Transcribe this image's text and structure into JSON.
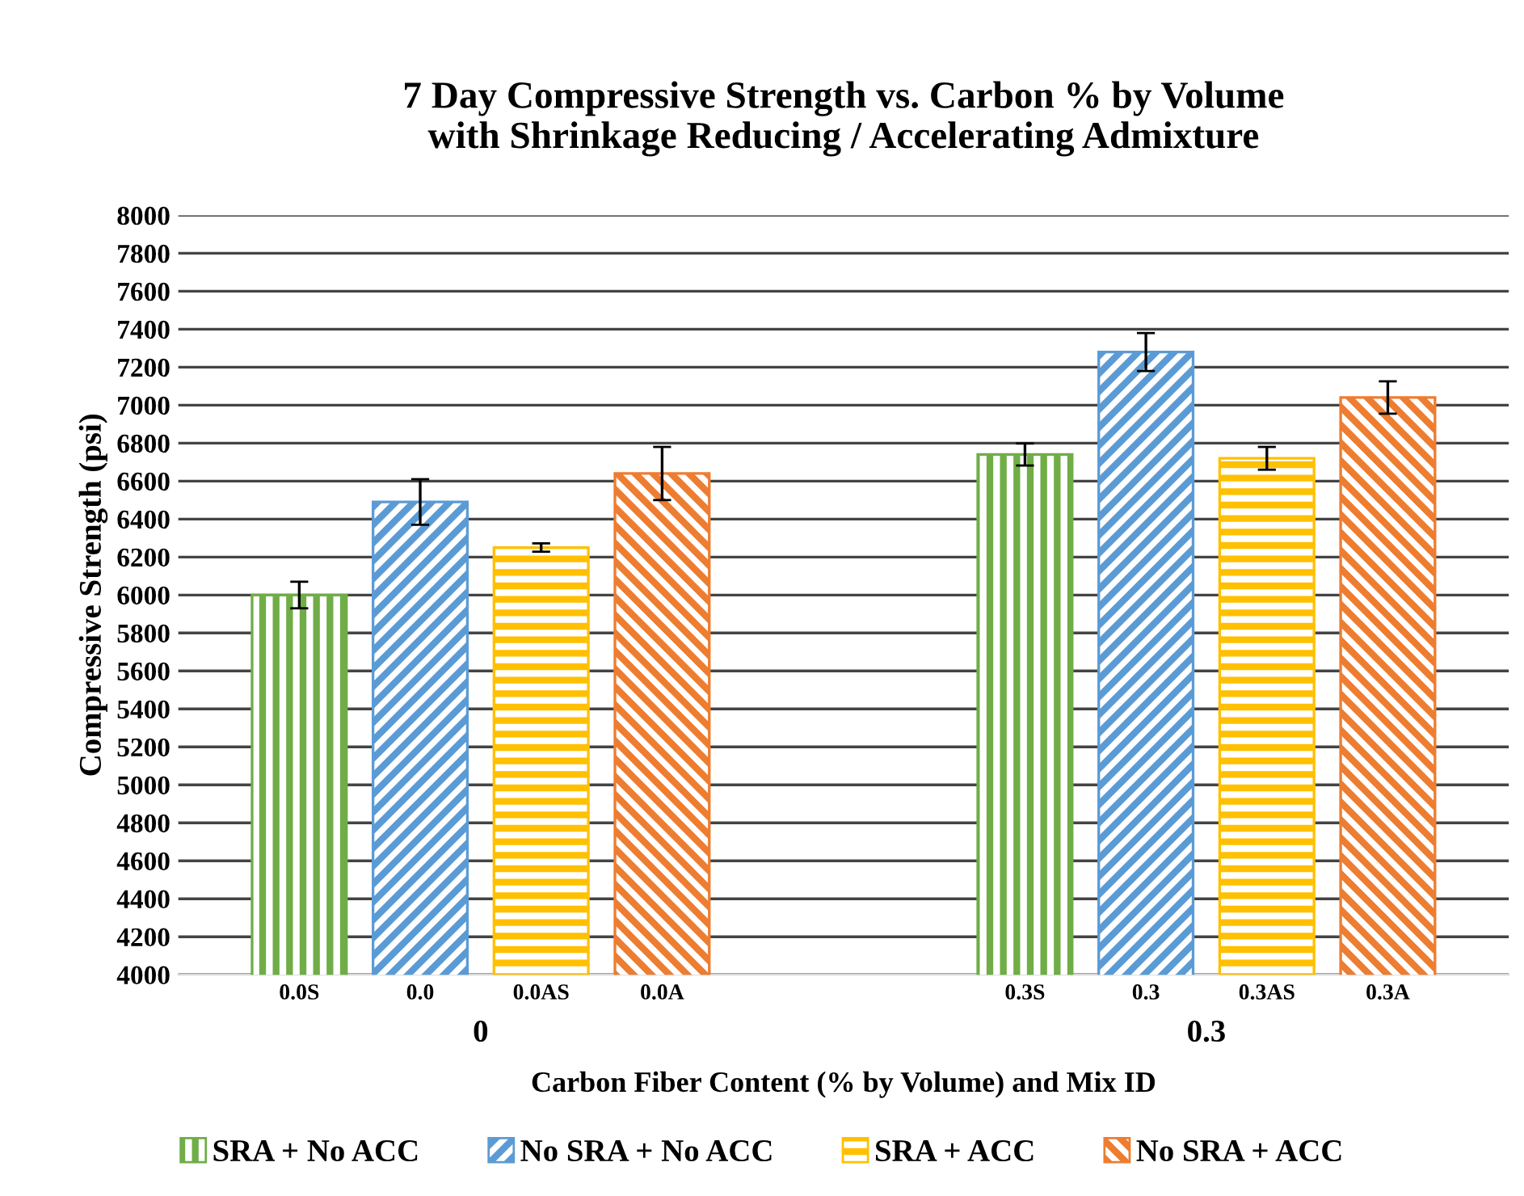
{
  "chart_data": {
    "type": "bar",
    "title": "7 Day Compressive Strength vs. Carbon % by Volume\nwith Shrinkage Reducing / Accelerating Admixture",
    "xlabel": "Carbon Fiber Content (% by Volume) and Mix ID",
    "ylabel": "Compressive Strength (psi)",
    "categories": [
      "0.0S",
      "0.0",
      "0.0AS",
      "0.0A",
      null,
      null,
      "0.3S",
      "0.3",
      "0.3AS",
      "0.3A"
    ],
    "annotations": [
      "0",
      "0.3"
    ],
    "series": [
      {
        "name": "SRA + No ACC",
        "color": "#70ad47",
        "values": [
          6000,
          null,
          null,
          null,
          null,
          null,
          6740,
          null,
          null,
          null
        ],
        "errors": [
          70,
          null,
          null,
          null,
          null,
          null,
          58,
          null,
          null,
          null
        ]
      },
      {
        "name": "No SRA + No ACC",
        "color": "#5b9bd5",
        "values": [
          null,
          6490,
          null,
          null,
          null,
          null,
          null,
          7280,
          null,
          null
        ],
        "errors": [
          null,
          120,
          null,
          null,
          null,
          null,
          null,
          100,
          null,
          null
        ]
      },
      {
        "name": "SRA + ACC",
        "color": "#ffc000",
        "values": [
          null,
          null,
          6250,
          null,
          null,
          null,
          null,
          null,
          6720,
          null
        ],
        "errors": [
          null,
          null,
          22,
          null,
          null,
          null,
          null,
          null,
          60,
          null
        ]
      },
      {
        "name": "No SRA + ACC",
        "color": "#ed7d31",
        "values": [
          null,
          null,
          null,
          6640,
          null,
          null,
          null,
          null,
          null,
          7040
        ],
        "errors": [
          null,
          null,
          null,
          140,
          null,
          null,
          null,
          null,
          null,
          85
        ]
      }
    ],
    "ylim": [
      4000,
      8000
    ],
    "yticks": [
      4000,
      4200,
      4400,
      4600,
      4800,
      5000,
      5200,
      5400,
      5600,
      5800,
      6000,
      6200,
      6400,
      6600,
      6800,
      7000,
      7200,
      7400,
      7600,
      7800,
      8000
    ],
    "grid": "y",
    "legend": "bottom"
  }
}
